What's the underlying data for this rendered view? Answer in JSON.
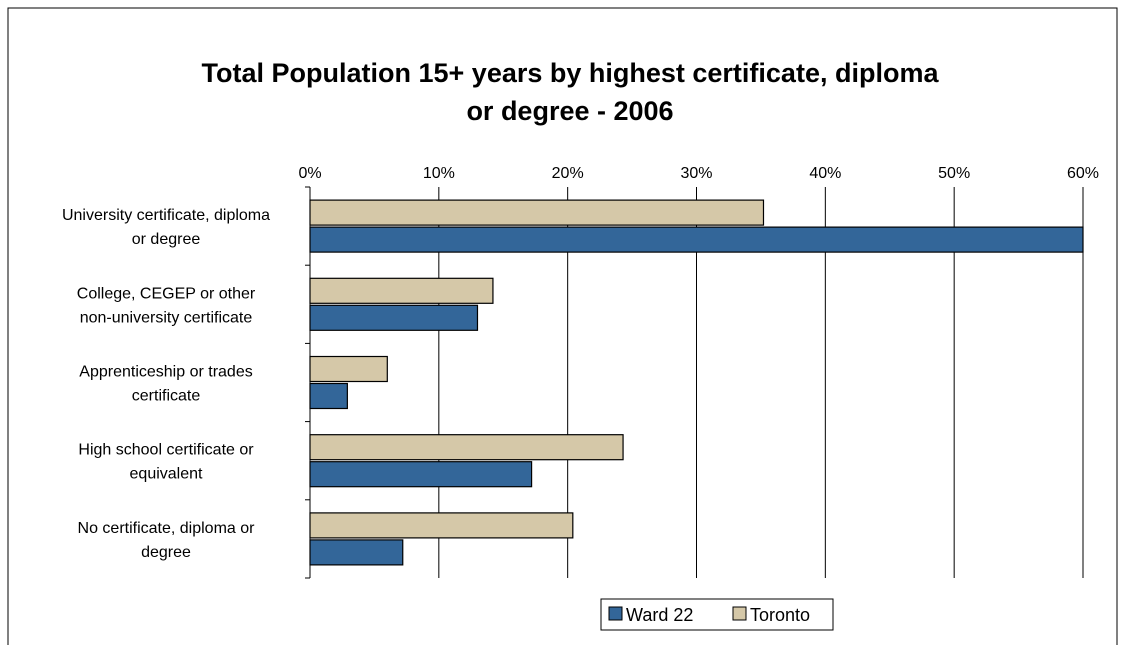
{
  "chart_data": {
    "type": "bar",
    "orientation": "horizontal",
    "title_lines": [
      "Total Population 15+ years by highest certificate, diploma",
      "or degree - 2006"
    ],
    "categories": [
      [
        "University certificate, diploma",
        "or degree"
      ],
      [
        "College, CEGEP or other",
        "non-university certificate"
      ],
      [
        "Apprenticeship or trades",
        "certificate"
      ],
      [
        "High school certificate or",
        "equivalent"
      ],
      [
        "No certificate, diploma or",
        "degree"
      ]
    ],
    "series": [
      {
        "name": "Toronto",
        "color": "#d5c8a8",
        "values": [
          35.2,
          14.2,
          6.0,
          24.3,
          20.4
        ]
      },
      {
        "name": "Ward 22",
        "color": "#336699",
        "values": [
          60.0,
          13.0,
          2.9,
          17.2,
          7.2
        ]
      }
    ],
    "xlim": [
      0,
      60
    ],
    "xticks": [
      "0%",
      "10%",
      "20%",
      "30%",
      "40%",
      "50%",
      "60%"
    ],
    "xtick_values": [
      0,
      10,
      20,
      30,
      40,
      50,
      60
    ],
    "grid": true,
    "legend": {
      "position": "bottom",
      "entries": [
        {
          "name": "Ward 22",
          "color": "#336699"
        },
        {
          "name": "Toronto",
          "color": "#d5c8a8"
        }
      ]
    }
  }
}
